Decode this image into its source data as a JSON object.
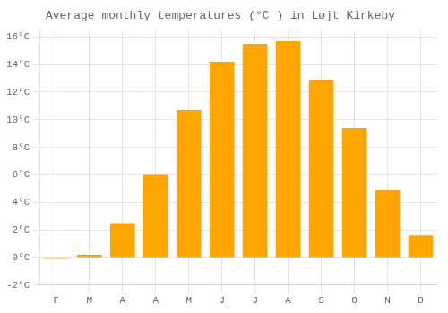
{
  "chart_data": {
    "type": "bar",
    "title": "Average monthly temperatures (°C ) in Løjt Kirkeby",
    "categories": [
      "F",
      "M",
      "A",
      "A",
      "M",
      "J",
      "J",
      "A",
      "S",
      "O",
      "N",
      "D"
    ],
    "values": [
      -0.1,
      0.2,
      2.5,
      6.0,
      10.7,
      14.2,
      15.5,
      15.7,
      12.9,
      9.4,
      4.9,
      1.6
    ],
    "color": "#FFA500",
    "ylim": [
      -2,
      16.5
    ],
    "yticks": [
      {
        "value": -2,
        "label": "-2°C"
      },
      {
        "value": 0,
        "label": "0°C"
      },
      {
        "value": 2,
        "label": "2°C"
      },
      {
        "value": 4,
        "label": "4°C"
      },
      {
        "value": 6,
        "label": "6°C"
      },
      {
        "value": 8,
        "label": "8°C"
      },
      {
        "value": 10,
        "label": "10°C"
      },
      {
        "value": 12,
        "label": "12°C"
      },
      {
        "value": 14,
        "label": "14°C"
      },
      {
        "value": 16,
        "label": "16°C"
      }
    ],
    "grid": true
  }
}
